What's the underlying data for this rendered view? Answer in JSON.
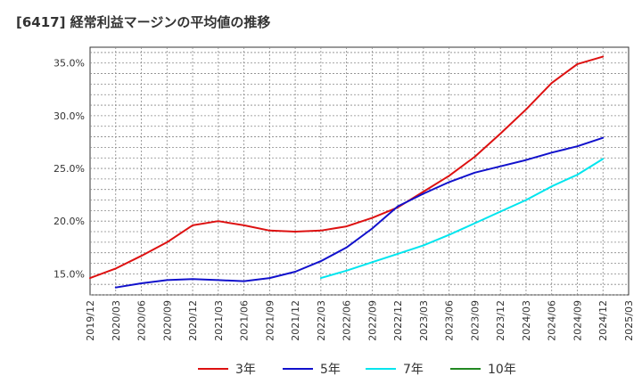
{
  "chart_data": {
    "type": "line",
    "title": "[6417]  経常利益マージンの平均値の推移",
    "x_ticks": [
      "2019/12",
      "2020/03",
      "2020/06",
      "2020/09",
      "2020/12",
      "2021/03",
      "2021/06",
      "2021/09",
      "2021/12",
      "2022/03",
      "2022/06",
      "2022/09",
      "2022/12",
      "2023/03",
      "2023/06",
      "2023/09",
      "2023/12",
      "2024/03",
      "2024/06",
      "2024/09",
      "2024/12",
      "2025/03"
    ],
    "y_ticks": [
      "15.0%",
      "20.0%",
      "25.0%",
      "30.0%",
      "35.0%"
    ],
    "ylim": [
      13.0,
      36.5
    ],
    "y_tick_values": [
      15,
      20,
      25,
      30,
      35
    ],
    "grid": true,
    "legend_position": "bottom",
    "series": [
      {
        "name": "3年",
        "color": "#dd1111",
        "x": [
          "2019/12",
          "2020/03",
          "2020/06",
          "2020/09",
          "2020/12",
          "2021/03",
          "2021/06",
          "2021/09",
          "2021/12",
          "2022/03",
          "2022/06",
          "2022/09",
          "2022/12",
          "2023/03",
          "2023/06",
          "2023/09",
          "2023/12",
          "2024/03",
          "2024/06",
          "2024/09",
          "2024/12"
        ],
        "values": [
          14.6,
          15.5,
          16.7,
          18.0,
          19.6,
          20.0,
          19.6,
          19.1,
          19.0,
          19.1,
          19.5,
          20.3,
          21.3,
          22.8,
          24.3,
          26.1,
          28.3,
          30.6,
          33.1,
          34.9,
          35.6
        ]
      },
      {
        "name": "5年",
        "color": "#1111cc",
        "x": [
          "2020/03",
          "2020/06",
          "2020/09",
          "2020/12",
          "2021/03",
          "2021/06",
          "2021/09",
          "2021/12",
          "2022/03",
          "2022/06",
          "2022/09",
          "2022/12",
          "2023/03",
          "2023/06",
          "2023/09",
          "2023/12",
          "2024/03",
          "2024/06",
          "2024/09",
          "2024/12"
        ],
        "values": [
          13.7,
          14.1,
          14.4,
          14.5,
          14.4,
          14.3,
          14.6,
          15.2,
          16.2,
          17.5,
          19.3,
          21.4,
          22.6,
          23.7,
          24.6,
          25.2,
          25.8,
          26.5,
          27.1,
          27.9
        ]
      },
      {
        "name": "7年",
        "color": "#00e5ee",
        "x": [
          "2022/03",
          "2022/06",
          "2022/09",
          "2022/12",
          "2023/03",
          "2023/06",
          "2023/09",
          "2023/12",
          "2024/03",
          "2024/06",
          "2024/09",
          "2024/12"
        ],
        "values": [
          14.6,
          15.3,
          16.1,
          16.9,
          17.7,
          18.7,
          19.8,
          20.9,
          22.0,
          23.3,
          24.4,
          25.9
        ]
      },
      {
        "name": "10年",
        "color": "#228822",
        "x": [],
        "values": []
      }
    ]
  }
}
